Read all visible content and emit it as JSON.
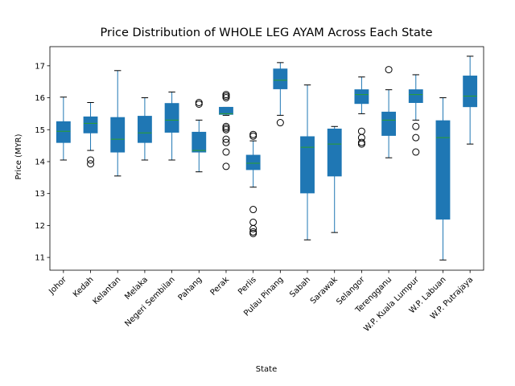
{
  "chart_data": {
    "type": "boxplot",
    "title": "Price Distribution of WHOLE LEG AYAM Across Each State",
    "xlabel": "State",
    "ylabel": "Price (MYR)",
    "ylim": [
      10.6,
      17.6
    ],
    "yticks": [
      11,
      12,
      13,
      14,
      15,
      16,
      17
    ],
    "grid": false,
    "colors": {
      "box": "#1f77b4",
      "median": "#2ca02c",
      "axis": "#000000"
    },
    "categories": [
      "Johor",
      "Kedah",
      "Kelantan",
      "Melaka",
      "Negeri Sembilan",
      "Pahang",
      "Perak",
      "Perlis",
      "Pulau Pinang",
      "Sabah",
      "Sarawak",
      "Selangor",
      "Terengganu",
      "W.P. Kuala Lumpur",
      "W.P. Labuan",
      "W.P. Putrajaya"
    ],
    "boxes": [
      {
        "whislo": 14.05,
        "q1": 14.6,
        "med": 14.95,
        "q3": 15.25,
        "whishi": 16.02,
        "fliers": []
      },
      {
        "whislo": 14.35,
        "q1": 14.9,
        "med": 15.2,
        "q3": 15.4,
        "whishi": 15.85,
        "fliers": [
          13.93,
          14.05
        ]
      },
      {
        "whislo": 13.55,
        "q1": 14.3,
        "med": 14.7,
        "q3": 15.38,
        "whishi": 16.85,
        "fliers": []
      },
      {
        "whislo": 14.05,
        "q1": 14.6,
        "med": 14.9,
        "q3": 15.42,
        "whishi": 16.0,
        "fliers": []
      },
      {
        "whislo": 14.05,
        "q1": 14.92,
        "med": 15.3,
        "q3": 15.82,
        "whishi": 16.18,
        "fliers": []
      },
      {
        "whislo": 13.68,
        "q1": 14.3,
        "med": 14.35,
        "q3": 14.92,
        "whishi": 15.3,
        "fliers": [
          15.8,
          15.85
        ]
      },
      {
        "whislo": 15.45,
        "q1": 15.48,
        "med": 15.5,
        "q3": 15.7,
        "whishi": 15.7,
        "fliers": [
          13.85,
          14.3,
          14.6,
          14.7,
          15.0,
          15.05,
          15.1,
          16.0,
          16.05,
          16.1
        ]
      },
      {
        "whislo": 13.2,
        "q1": 13.75,
        "med": 13.95,
        "q3": 14.2,
        "whishi": 14.65,
        "fliers": [
          11.75,
          11.8,
          11.9,
          12.1,
          12.5,
          14.8,
          14.85
        ]
      },
      {
        "whislo": 15.45,
        "q1": 16.28,
        "med": 16.55,
        "q3": 16.9,
        "whishi": 17.1,
        "fliers": [
          15.22
        ]
      },
      {
        "whislo": 11.55,
        "q1": 13.02,
        "med": 14.45,
        "q3": 14.78,
        "whishi": 16.4,
        "fliers": []
      },
      {
        "whislo": 11.78,
        "q1": 13.55,
        "med": 14.55,
        "q3": 15.02,
        "whishi": 15.1,
        "fliers": []
      },
      {
        "whislo": 15.5,
        "q1": 15.82,
        "med": 16.1,
        "q3": 16.25,
        "whishi": 16.65,
        "fliers": [
          14.55,
          14.6,
          14.75,
          14.95
        ]
      },
      {
        "whislo": 14.12,
        "q1": 14.82,
        "med": 15.3,
        "q3": 15.55,
        "whishi": 16.25,
        "fliers": [
          16.88
        ]
      },
      {
        "whislo": 15.3,
        "q1": 15.85,
        "med": 16.1,
        "q3": 16.25,
        "whishi": 16.72,
        "fliers": [
          14.3,
          14.75,
          15.1
        ]
      },
      {
        "whislo": 10.92,
        "q1": 12.2,
        "med": 14.75,
        "q3": 15.28,
        "whishi": 16.0,
        "fliers": []
      },
      {
        "whislo": 14.55,
        "q1": 15.72,
        "med": 16.05,
        "q3": 16.68,
        "whishi": 17.3,
        "fliers": []
      }
    ]
  }
}
